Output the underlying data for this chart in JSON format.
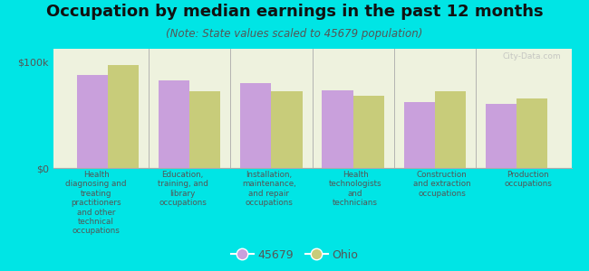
{
  "title": "Occupation by median earnings in the past 12 months",
  "subtitle": "(Note: State values scaled to 45679 population)",
  "background_color": "#00e5e5",
  "plot_bg_color": "#eef2de",
  "categories": [
    "Health\ndiagnosing and\ntreating\npractitioners\nand other\ntechnical\noccupations",
    "Education,\ntraining, and\nlibrary\noccupations",
    "Installation,\nmaintenance,\nand repair\noccupations",
    "Health\ntechnologists\nand\ntechnicians",
    "Construction\nand extraction\noccupations",
    "Production\noccupations"
  ],
  "values_45679": [
    87000,
    82000,
    80000,
    73000,
    62000,
    60000
  ],
  "values_ohio": [
    97000,
    72000,
    72000,
    68000,
    72000,
    65000
  ],
  "color_45679": "#c9a0dc",
  "color_ohio": "#c8cc7a",
  "ylim": [
    0,
    112000
  ],
  "yticks": [
    0,
    100000
  ],
  "ytick_labels": [
    "$0",
    "$100k"
  ],
  "legend_labels": [
    "45679",
    "Ohio"
  ],
  "bar_width": 0.38,
  "title_fontsize": 13,
  "subtitle_fontsize": 8.5,
  "tick_fontsize": 8,
  "legend_fontsize": 9,
  "watermark": "City-Data.com"
}
